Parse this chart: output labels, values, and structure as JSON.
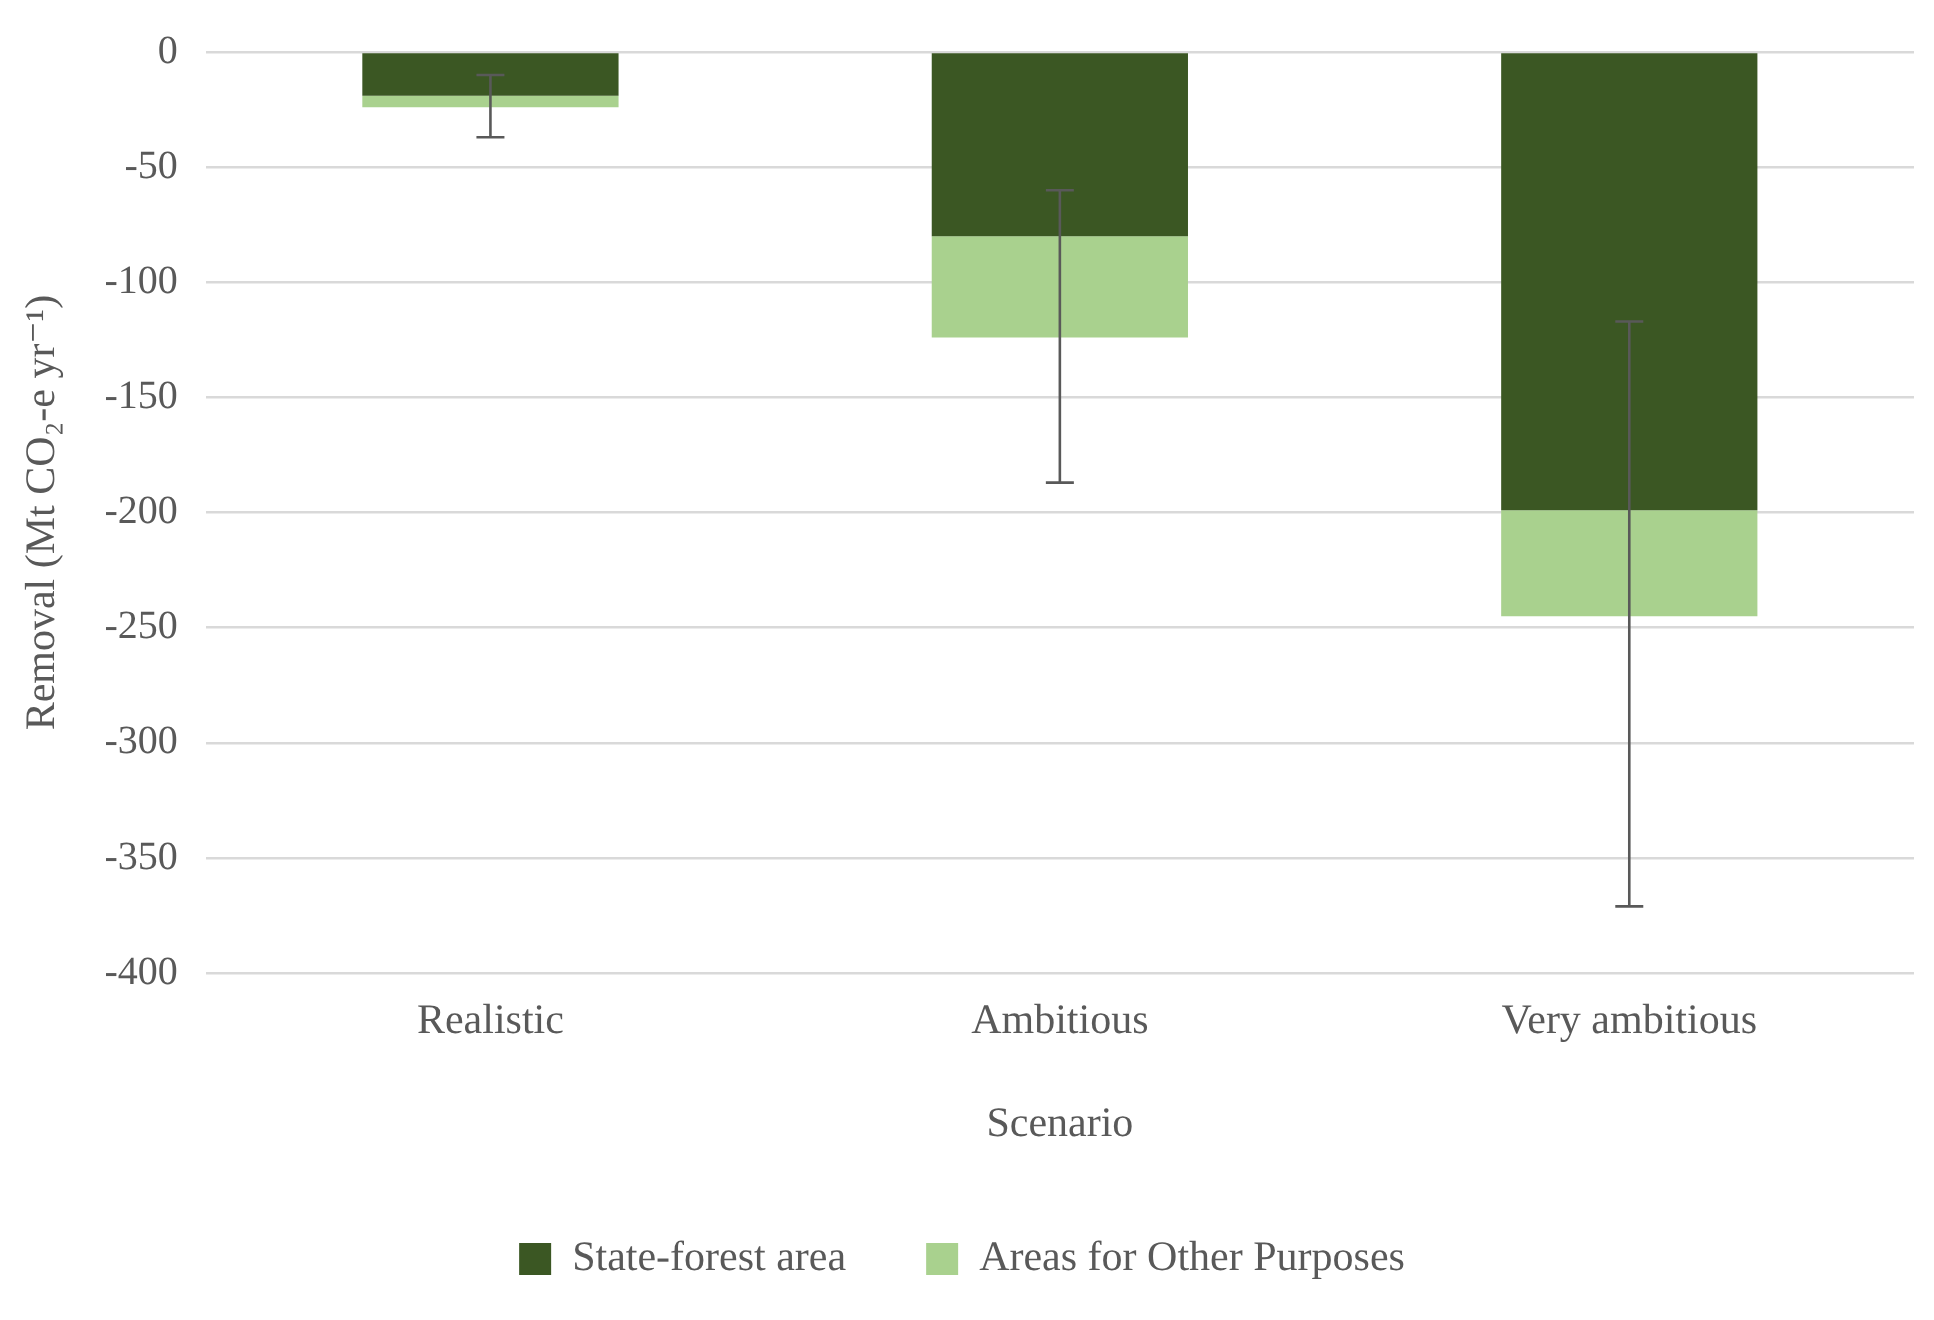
{
  "chart_data": {
    "type": "bar",
    "stacked": true,
    "xlabel": "Scenario",
    "ylabel": "Removal (Mt CO₂-e yr⁻¹)",
    "categories": [
      "Realistic",
      "Ambitious",
      "Very ambitious"
    ],
    "series": [
      {
        "name": "State-forest area",
        "color": "#3b5723",
        "values": [
          -19,
          -80,
          -199
        ]
      },
      {
        "name": "Areas for Other Purposes",
        "color": "#a9d18e",
        "values": [
          -5,
          -44,
          -46
        ],
        "errors": [
          [
            -37,
            -10
          ],
          [
            -187,
            -60
          ],
          [
            -371,
            -117
          ]
        ]
      }
    ],
    "ylim": [
      -400,
      0
    ],
    "yticks": [
      -400,
      -350,
      -300,
      -250,
      -200,
      -150,
      -100,
      -50,
      0
    ],
    "grid": "y",
    "legend": "bottom"
  }
}
